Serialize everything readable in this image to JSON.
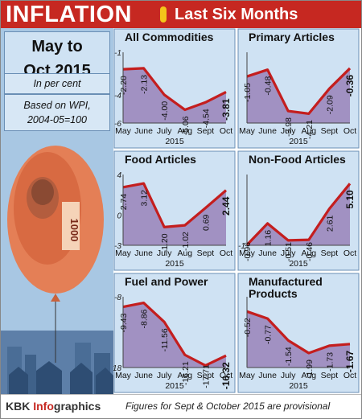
{
  "header": {
    "title": "INFLATION",
    "subtitle": "Last Six Months"
  },
  "sidebar": {
    "period_line1": "May to",
    "period_line2": "Oct 2015",
    "unit": "In per cent",
    "basis_line1": "Based on WPI,",
    "basis_line2": "2004-05=100"
  },
  "footer": {
    "brand_main": "KBK ",
    "brand_accent": "Info",
    "brand_tail": "graphics",
    "note": "Figures for Sept & October 2015 are provisional"
  },
  "colors": {
    "header_red": "#c62821",
    "fill_purple": "#9b88bd",
    "line_red": "#c41e1e",
    "panel_bg": "#cfe2f3",
    "sidebar_bg": "#a8c7e3"
  },
  "illustration": {
    "description_icon": "rupee-note-balloon-icon",
    "note_text": "1000"
  },
  "chart_data": [
    {
      "type": "area",
      "title": "All Commodities",
      "categories": [
        "May",
        "June",
        "July",
        "Aug",
        "Sept",
        "Oct"
      ],
      "xlabel": "2015",
      "values": [
        -2.2,
        -2.13,
        -4.0,
        -5.06,
        -4.54,
        -3.81
      ],
      "ylim": [
        -6,
        -1
      ],
      "yticks": [
        -1,
        -4,
        -6
      ]
    },
    {
      "type": "area",
      "title": "Primary Articles",
      "categories": [
        "May",
        "June",
        "July",
        "Aug",
        "Sept",
        "Oct"
      ],
      "xlabel": "2015",
      "values": [
        -1.05,
        -0.48,
        -3.98,
        -4.21,
        -2.09,
        -0.36
      ],
      "ylim": [
        -5,
        1
      ],
      "yticks": []
    },
    {
      "type": "area",
      "title": "Food Articles",
      "categories": [
        "May",
        "June",
        "July",
        "Aug",
        "Sept",
        "Oct"
      ],
      "xlabel": "2015",
      "values": [
        2.74,
        3.12,
        -1.2,
        -1.02,
        0.69,
        2.44
      ],
      "ylim": [
        -3,
        4
      ],
      "yticks": [
        4,
        0,
        -3
      ]
    },
    {
      "type": "area",
      "title": "Non-Food Articles",
      "categories": [
        "May",
        "June",
        "July",
        "Aug",
        "Sept",
        "Oct"
      ],
      "xlabel": "2015",
      "values": [
        -0.96,
        1.16,
        -0.51,
        -0.46,
        2.61,
        5.1
      ],
      "ylim": [
        -1,
        6
      ],
      "yticks": [
        -1
      ]
    },
    {
      "type": "area",
      "title": "Fuel and Power",
      "categories": [
        "May",
        "June",
        "July",
        "Aug",
        "Sept",
        "Oct"
      ],
      "xlabel": "2015",
      "values": [
        -9.43,
        -8.86,
        -11.56,
        -16.21,
        -17.71,
        -16.32
      ],
      "ylim": [
        -18,
        -8
      ],
      "yticks": [
        -8,
        -18
      ]
    },
    {
      "type": "area",
      "title": "Manufactured Products",
      "categories": [
        "May",
        "June",
        "July",
        "Aug",
        "Sept",
        "Oct"
      ],
      "xlabel": "2015",
      "values": [
        -0.52,
        -0.77,
        -1.54,
        -1.99,
        -1.73,
        -1.67
      ],
      "ylim": [
        -2.5,
        0
      ],
      "yticks": []
    }
  ]
}
